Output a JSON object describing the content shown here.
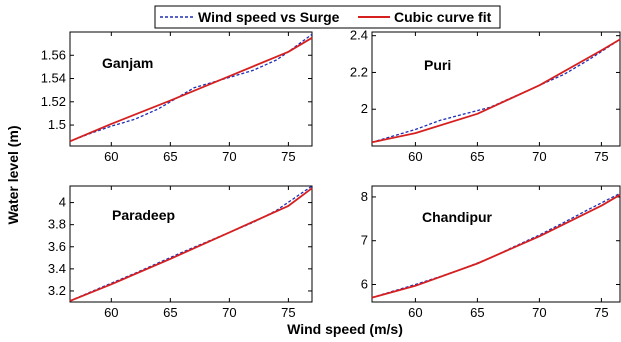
{
  "legend": {
    "entries": [
      {
        "label": "Wind speed vs Surge",
        "color": "#1f2fb5",
        "style": "dashed"
      },
      {
        "label": "Cubic curve fit",
        "color": "#d62020",
        "style": "solid"
      }
    ]
  },
  "xlabel": "Wind speed (m/s)",
  "ylabel": "Water level (m)",
  "chart_data": [
    {
      "type": "line",
      "title": "Ganjam",
      "xlim": [
        56.5,
        77
      ],
      "ylim": [
        1.482,
        1.58
      ],
      "xticks": [
        60,
        65,
        70,
        75
      ],
      "yticks": [
        1.5,
        1.52,
        1.54,
        1.56
      ],
      "ytick_labels": [
        "1.5",
        "1.52",
        "1.54",
        "1.56"
      ],
      "series": [
        {
          "name": "Wind speed vs Surge",
          "x": [
            56.5,
            58,
            60,
            62,
            64,
            66,
            67,
            68,
            70,
            72,
            74,
            75,
            77
          ],
          "y": [
            1.486,
            1.492,
            1.499,
            1.505,
            1.514,
            1.526,
            1.532,
            1.535,
            1.541,
            1.547,
            1.556,
            1.563,
            1.578
          ]
        },
        {
          "name": "Cubic curve fit",
          "x": [
            56.5,
            60,
            65,
            70,
            75,
            77
          ],
          "y": [
            1.486,
            1.501,
            1.521,
            1.542,
            1.563,
            1.575
          ]
        }
      ]
    },
    {
      "type": "line",
      "title": "Puri",
      "xlim": [
        56.5,
        76.5
      ],
      "ylim": [
        1.8,
        2.42
      ],
      "xticks": [
        60,
        65,
        70,
        75
      ],
      "yticks": [
        2,
        2.2,
        2.4
      ],
      "ytick_labels": [
        "2",
        "2.2",
        "2.4"
      ],
      "series": [
        {
          "name": "Wind speed vs Surge",
          "x": [
            56.5,
            58,
            60,
            62,
            64,
            66,
            68,
            70,
            72,
            74,
            76.5
          ],
          "y": [
            1.82,
            1.85,
            1.89,
            1.94,
            1.975,
            2.01,
            2.07,
            2.13,
            2.19,
            2.27,
            2.38
          ]
        },
        {
          "name": "Cubic curve fit",
          "x": [
            56.5,
            60,
            65,
            70,
            75,
            76.5
          ],
          "y": [
            1.82,
            1.87,
            1.975,
            2.13,
            2.32,
            2.38
          ]
        }
      ]
    },
    {
      "type": "line",
      "title": "Paradeep",
      "xlim": [
        56.5,
        77
      ],
      "ylim": [
        3.1,
        4.15
      ],
      "xticks": [
        60,
        65,
        70,
        75
      ],
      "yticks": [
        3.2,
        3.4,
        3.6,
        3.8,
        4
      ],
      "ytick_labels": [
        "3.2",
        "3.4",
        "3.6",
        "3.8",
        "4"
      ],
      "series": [
        {
          "name": "Wind speed vs Surge",
          "x": [
            56.5,
            58,
            60,
            62,
            64,
            66,
            68,
            70,
            72,
            74,
            77
          ],
          "y": [
            3.11,
            3.18,
            3.27,
            3.36,
            3.455,
            3.55,
            3.64,
            3.73,
            3.82,
            3.93,
            4.15
          ]
        },
        {
          "name": "Cubic curve fit",
          "x": [
            56.5,
            60,
            65,
            70,
            75,
            77
          ],
          "y": [
            3.11,
            3.26,
            3.49,
            3.73,
            3.97,
            4.13
          ]
        }
      ]
    },
    {
      "type": "line",
      "title": "Chandipur",
      "xlim": [
        56.5,
        76.5
      ],
      "ylim": [
        5.6,
        8.25
      ],
      "xticks": [
        60,
        65,
        70,
        75
      ],
      "yticks": [
        6,
        7,
        8
      ],
      "ytick_labels": [
        "6",
        "7",
        "8"
      ],
      "series": [
        {
          "name": "Wind speed vs Surge",
          "x": [
            56.5,
            58,
            60,
            62,
            64,
            66,
            68,
            70,
            72,
            74,
            76.5
          ],
          "y": [
            5.7,
            5.83,
            6.0,
            6.18,
            6.38,
            6.6,
            6.87,
            7.13,
            7.42,
            7.72,
            8.08
          ]
        },
        {
          "name": "Cubic curve fit",
          "x": [
            56.5,
            60,
            65,
            70,
            75,
            76.5
          ],
          "y": [
            5.7,
            5.97,
            6.48,
            7.1,
            7.8,
            8.05
          ]
        }
      ]
    }
  ]
}
